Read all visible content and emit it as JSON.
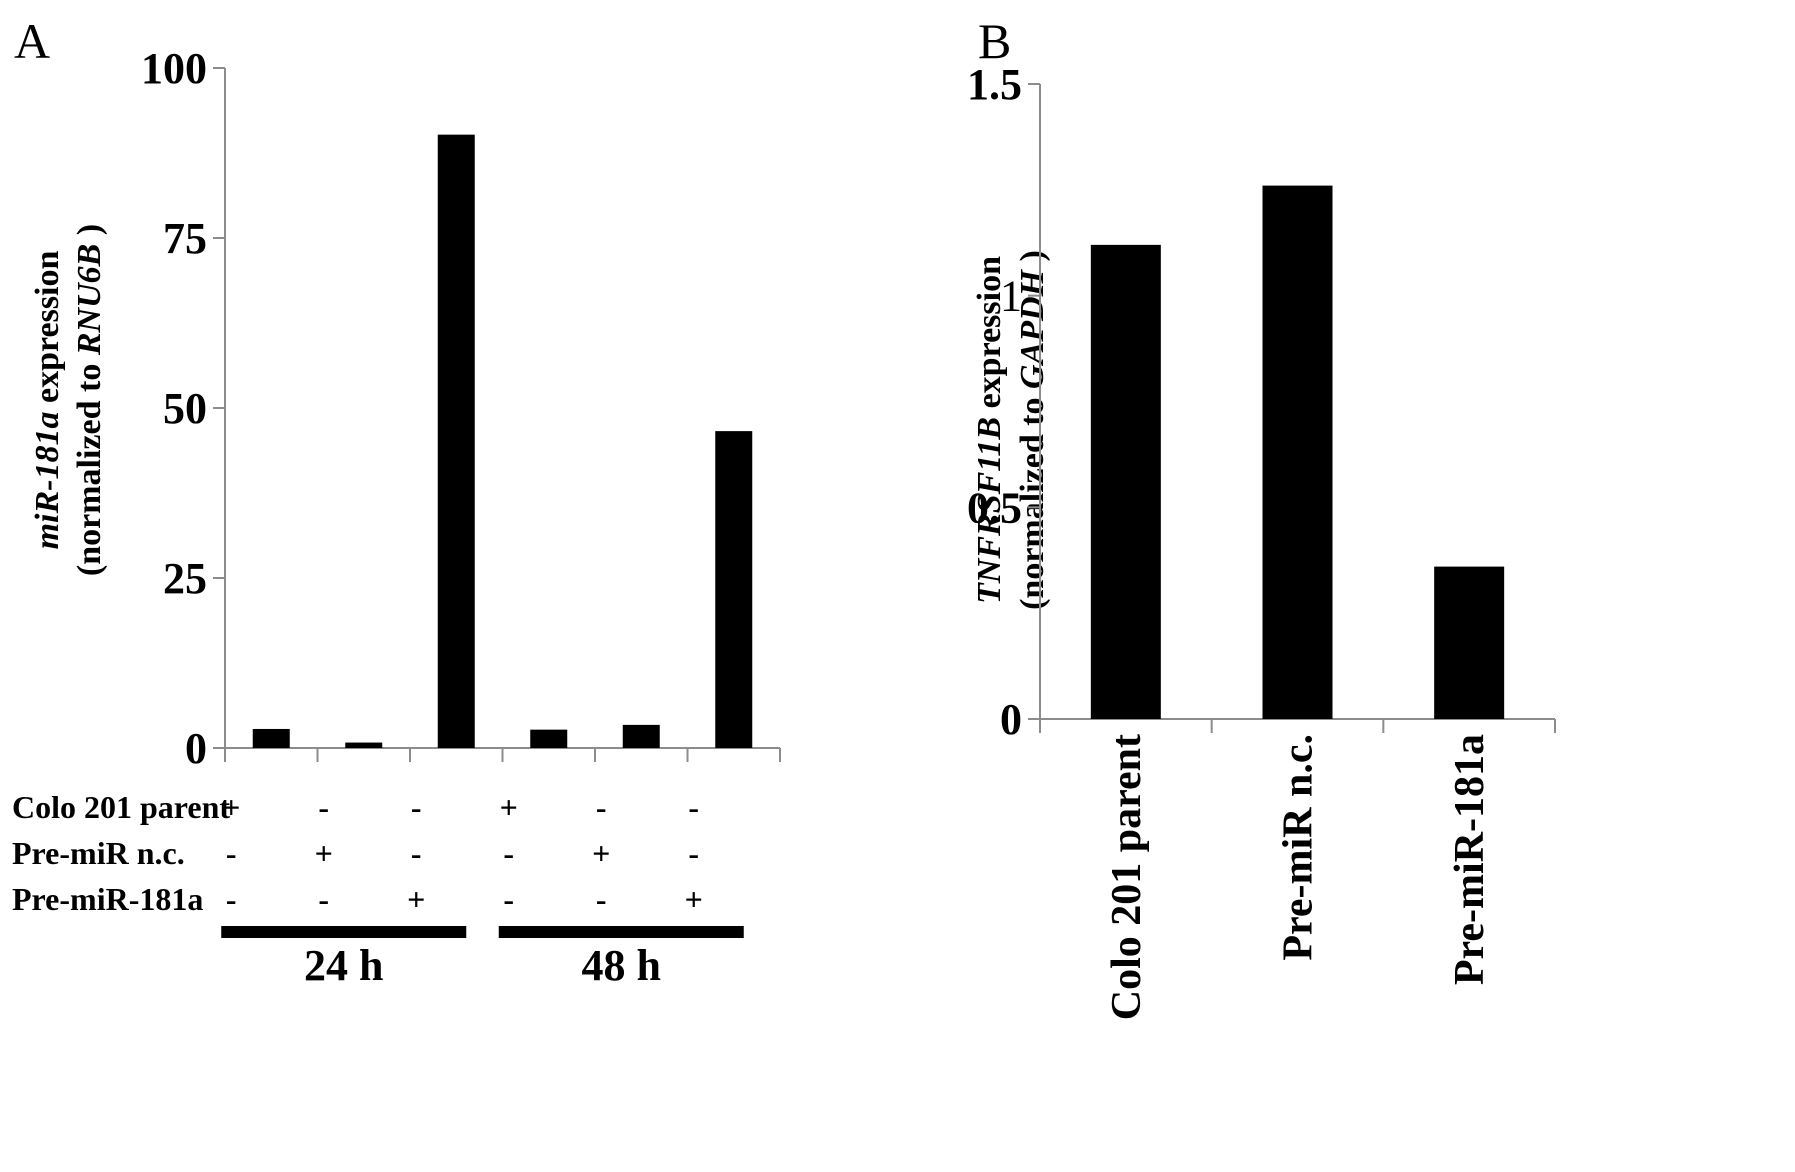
{
  "chart_data": [
    {
      "panel": "A",
      "type": "bar",
      "ylabel_line1": [
        "miR-181a",
        " expression"
      ],
      "ylabel_line2": [
        "(normalized to ",
        "RNU6B",
        " )"
      ],
      "ylim": [
        0,
        100
      ],
      "yticks": [
        "0",
        "25",
        "50",
        "75",
        "100"
      ],
      "values": [
        2.8,
        0.8,
        90.2,
        2.7,
        3.4,
        46.6
      ],
      "row_labels": [
        "Colo 201 parent",
        "Pre-miR n.c.",
        "Pre-miR-181a"
      ],
      "signs": [
        [
          "+",
          "-",
          "-",
          "+",
          "-",
          "-"
        ],
        [
          "-",
          "+",
          "-",
          "-",
          "+",
          "-"
        ],
        [
          "-",
          "-",
          "+",
          "-",
          "-",
          "+"
        ]
      ],
      "groups": [
        "24 h",
        "48 h"
      ],
      "bar_color": "#000000"
    },
    {
      "panel": "B",
      "type": "bar",
      "ylabel_line1": [
        "TNFRSF11B",
        " expression"
      ],
      "ylabel_line2": [
        "(normalized to ",
        "GAPDH",
        " )"
      ],
      "ylim": [
        0,
        1.5
      ],
      "yticks": [
        "0",
        "0.5",
        "1",
        "1.5"
      ],
      "categories": [
        "Colo 201 parent",
        "Pre-miR n.c.",
        "Pre-miR-181a"
      ],
      "values": [
        1.12,
        1.26,
        0.36
      ],
      "bar_color": "#000000"
    }
  ]
}
